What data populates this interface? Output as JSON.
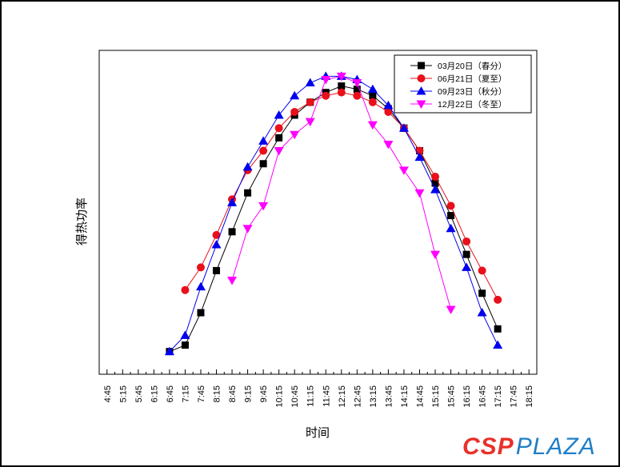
{
  "chart_data": {
    "type": "line",
    "title": "",
    "xlabel": "时间",
    "ylabel": "得热功率",
    "y_ticks_shown": false,
    "categories": [
      "4:45",
      "5:15",
      "5:45",
      "6:15",
      "6:45",
      "7:15",
      "7:45",
      "8:15",
      "8:45",
      "9:15",
      "9:45",
      "10:15",
      "10:45",
      "11:15",
      "11:45",
      "12:15",
      "12:45",
      "13:15",
      "13:45",
      "14:15",
      "14:45",
      "15:15",
      "15:45",
      "16:15",
      "16:45",
      "17:15",
      "17:45",
      "18:15"
    ],
    "x_start_minutes": 285,
    "x_end_minutes": 1095,
    "ylim": [
      0,
      100
    ],
    "legend_position": "top-right",
    "series": [
      {
        "name": "03月20日（春分）",
        "color": "#000000",
        "marker": "square",
        "points": [
          [
            "6:45",
            7
          ],
          [
            "7:15",
            9
          ],
          [
            "7:45",
            19
          ],
          [
            "8:15",
            32
          ],
          [
            "8:45",
            44
          ],
          [
            "9:15",
            56
          ],
          [
            "9:45",
            65
          ],
          [
            "10:15",
            73
          ],
          [
            "10:45",
            80
          ],
          [
            "11:15",
            84
          ],
          [
            "11:45",
            87
          ],
          [
            "12:15",
            89
          ],
          [
            "12:45",
            88
          ],
          [
            "13:15",
            86
          ],
          [
            "13:45",
            82
          ],
          [
            "14:15",
            76
          ],
          [
            "14:45",
            69
          ],
          [
            "15:15",
            59
          ],
          [
            "15:45",
            49
          ],
          [
            "16:15",
            37
          ],
          [
            "16:45",
            25
          ],
          [
            "17:15",
            14
          ]
        ]
      },
      {
        "name": "06月21日（夏至）",
        "color": "#e8101a",
        "marker": "circle",
        "points": [
          [
            "7:15",
            26
          ],
          [
            "7:45",
            33
          ],
          [
            "8:15",
            43
          ],
          [
            "8:45",
            54
          ],
          [
            "9:15",
            63
          ],
          [
            "9:45",
            69
          ],
          [
            "10:15",
            76
          ],
          [
            "10:45",
            81
          ],
          [
            "11:15",
            84
          ],
          [
            "11:45",
            86
          ],
          [
            "12:15",
            87
          ],
          [
            "12:45",
            86
          ],
          [
            "13:15",
            84
          ],
          [
            "13:45",
            81
          ],
          [
            "14:15",
            76
          ],
          [
            "14:45",
            69
          ],
          [
            "15:15",
            61
          ],
          [
            "15:45",
            52
          ],
          [
            "16:15",
            41
          ],
          [
            "16:45",
            32
          ],
          [
            "17:15",
            23
          ]
        ]
      },
      {
        "name": "09月23日（秋分）",
        "color": "#0000ee",
        "marker": "triangle-up",
        "points": [
          [
            "6:45",
            7
          ],
          [
            "7:15",
            12
          ],
          [
            "7:45",
            27
          ],
          [
            "8:15",
            40
          ],
          [
            "8:45",
            53
          ],
          [
            "9:15",
            64
          ],
          [
            "9:45",
            72
          ],
          [
            "10:15",
            80
          ],
          [
            "10:45",
            86
          ],
          [
            "11:15",
            90
          ],
          [
            "11:45",
            92
          ],
          [
            "12:15",
            92
          ],
          [
            "12:45",
            91
          ],
          [
            "13:15",
            88
          ],
          [
            "13:45",
            83
          ],
          [
            "14:15",
            76
          ],
          [
            "14:45",
            67
          ],
          [
            "15:15",
            57
          ],
          [
            "15:45",
            45
          ],
          [
            "16:15",
            33
          ],
          [
            "16:45",
            19
          ],
          [
            "17:15",
            9
          ]
        ]
      },
      {
        "name": "12月22日（冬至）",
        "color": "#ff00ff",
        "marker": "triangle-down",
        "points": [
          [
            "8:45",
            29
          ],
          [
            "9:15",
            45
          ],
          [
            "9:45",
            52
          ],
          [
            "10:15",
            69
          ],
          [
            "10:45",
            74
          ],
          [
            "11:15",
            78
          ],
          [
            "11:45",
            91
          ],
          [
            "12:15",
            92
          ],
          [
            "12:45",
            90
          ],
          [
            "13:15",
            77
          ],
          [
            "13:45",
            71
          ],
          [
            "14:15",
            63
          ],
          [
            "14:45",
            56
          ],
          [
            "15:15",
            37
          ],
          [
            "15:45",
            20
          ]
        ]
      }
    ]
  },
  "watermark": {
    "part1": "CSP",
    "part2": "PLAZA"
  }
}
